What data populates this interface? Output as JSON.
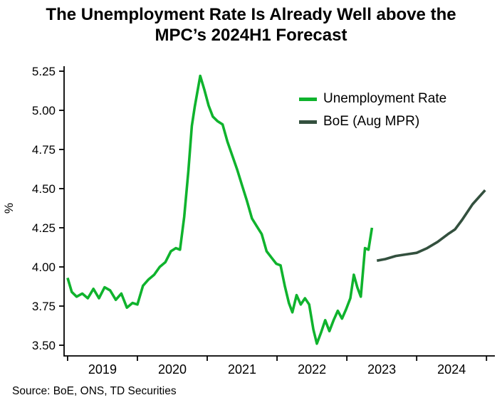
{
  "title": {
    "line1": "The Unemployment Rate Is Already Well above the",
    "line2": "MPC’s 2024H1 Forecast"
  },
  "source": "Source: BoE, ONS, TD Securities",
  "chart_data": {
    "type": "line",
    "title": "The Unemployment Rate Is Already Well above the MPC’s 2024H1 Forecast",
    "xlabel": "",
    "ylabel": "%",
    "ylim": [
      3.5,
      5.25
    ],
    "ytick_step": 0.25,
    "xlim": [
      2018.45,
      2024.62
    ],
    "xticks": [
      2018.5,
      2019.5,
      2020.5,
      2021.5,
      2022.5,
      2023.5,
      2024.5
    ],
    "xtick_labels": [
      {
        "value": 2019,
        "label": "2019"
      },
      {
        "value": 2020,
        "label": "2020"
      },
      {
        "value": 2021,
        "label": "2021"
      },
      {
        "value": 2022,
        "label": "2022"
      },
      {
        "value": 2023,
        "label": "2023"
      },
      {
        "value": 2024,
        "label": "2024"
      }
    ],
    "grid": false,
    "legend_position": "upper-right-inside",
    "series": [
      {
        "name": "Unemployment Rate",
        "color": "#0fb32d",
        "points": [
          [
            2018.5,
            3.93
          ],
          [
            2018.56,
            3.84
          ],
          [
            2018.63,
            3.81
          ],
          [
            2018.71,
            3.83
          ],
          [
            2018.79,
            3.8
          ],
          [
            2018.87,
            3.86
          ],
          [
            2018.95,
            3.8
          ],
          [
            2019.03,
            3.87
          ],
          [
            2019.11,
            3.85
          ],
          [
            2019.19,
            3.79
          ],
          [
            2019.27,
            3.83
          ],
          [
            2019.35,
            3.74
          ],
          [
            2019.43,
            3.77
          ],
          [
            2019.5,
            3.76
          ],
          [
            2019.58,
            3.88
          ],
          [
            2019.66,
            3.92
          ],
          [
            2019.74,
            3.95
          ],
          [
            2019.82,
            4.0
          ],
          [
            2019.9,
            4.03
          ],
          [
            2019.98,
            4.1
          ],
          [
            2020.05,
            4.12
          ],
          [
            2020.11,
            4.11
          ],
          [
            2020.17,
            4.32
          ],
          [
            2020.23,
            4.61
          ],
          [
            2020.28,
            4.9
          ],
          [
            2020.32,
            5.02
          ],
          [
            2020.36,
            5.12
          ],
          [
            2020.4,
            5.22
          ],
          [
            2020.46,
            5.13
          ],
          [
            2020.52,
            5.03
          ],
          [
            2020.58,
            4.96
          ],
          [
            2020.65,
            4.93
          ],
          [
            2020.72,
            4.91
          ],
          [
            2020.79,
            4.8
          ],
          [
            2020.86,
            4.71
          ],
          [
            2020.93,
            4.62
          ],
          [
            2021.0,
            4.52
          ],
          [
            2021.07,
            4.42
          ],
          [
            2021.14,
            4.31
          ],
          [
            2021.21,
            4.26
          ],
          [
            2021.28,
            4.21
          ],
          [
            2021.35,
            4.1
          ],
          [
            2021.42,
            4.06
          ],
          [
            2021.49,
            4.02
          ],
          [
            2021.55,
            4.01
          ],
          [
            2021.61,
            3.88
          ],
          [
            2021.67,
            3.77
          ],
          [
            2021.72,
            3.71
          ],
          [
            2021.78,
            3.82
          ],
          [
            2021.84,
            3.76
          ],
          [
            2021.9,
            3.8
          ],
          [
            2021.96,
            3.76
          ],
          [
            2022.02,
            3.6
          ],
          [
            2022.07,
            3.51
          ],
          [
            2022.13,
            3.58
          ],
          [
            2022.19,
            3.66
          ],
          [
            2022.25,
            3.59
          ],
          [
            2022.31,
            3.66
          ],
          [
            2022.37,
            3.72
          ],
          [
            2022.43,
            3.67
          ],
          [
            2022.49,
            3.73
          ],
          [
            2022.55,
            3.8
          ],
          [
            2022.6,
            3.95
          ],
          [
            2022.65,
            3.87
          ],
          [
            2022.7,
            3.81
          ],
          [
            2022.76,
            4.12
          ],
          [
            2022.81,
            4.11
          ],
          [
            2022.86,
            4.25
          ]
        ]
      },
      {
        "name": "BoE (Aug MPR)",
        "color": "#33503e",
        "points": [
          [
            2022.93,
            4.04
          ],
          [
            2023.05,
            4.05
          ],
          [
            2023.2,
            4.07
          ],
          [
            2023.35,
            4.08
          ],
          [
            2023.5,
            4.09
          ],
          [
            2023.65,
            4.12
          ],
          [
            2023.8,
            4.16
          ],
          [
            2023.95,
            4.21
          ],
          [
            2024.05,
            4.24
          ],
          [
            2024.15,
            4.3
          ],
          [
            2024.3,
            4.4
          ],
          [
            2024.48,
            4.49
          ]
        ]
      }
    ]
  }
}
